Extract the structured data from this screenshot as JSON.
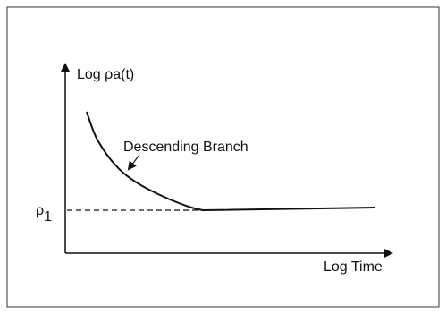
{
  "y_axis": {
    "label": "Log ρa(t)"
  },
  "x_axis": {
    "label": "Log Time"
  },
  "annotation": {
    "label": "Descending Branch"
  },
  "level": {
    "symbol": "ρ",
    "subscript": "1"
  }
}
